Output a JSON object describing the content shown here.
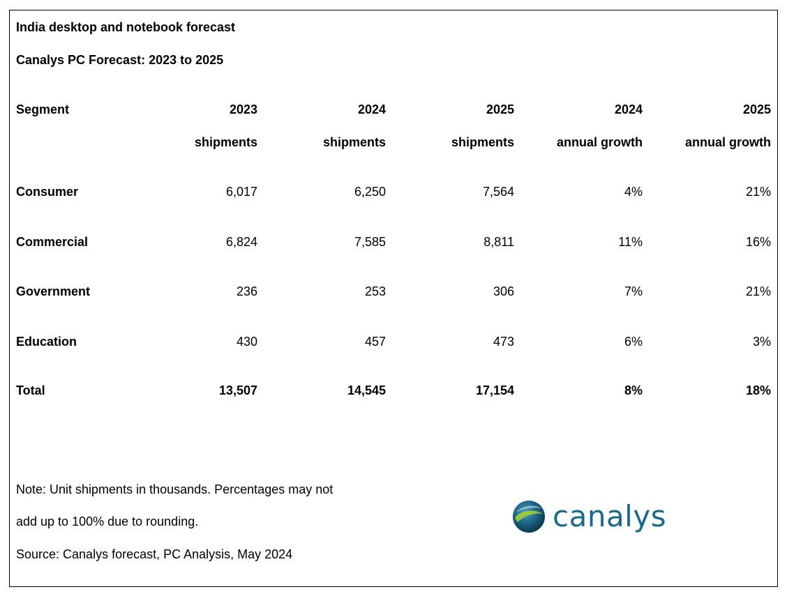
{
  "title": "India desktop and notebook forecast",
  "subtitle": "Canalys PC Forecast: 2023 to 2025",
  "table": {
    "headers_row1": [
      "Segment",
      "2023",
      "2024",
      "2025",
      "2024",
      "2025"
    ],
    "headers_row2": [
      "",
      "shipments",
      "shipments",
      "shipments",
      "annual growth",
      "annual growth"
    ],
    "rows": [
      {
        "segment": "Consumer",
        "s2023": "6,017",
        "s2024": "6,250",
        "s2025": "7,564",
        "g2024": "4%",
        "g2025": "21%"
      },
      {
        "segment": "Commercial",
        "s2023": "6,824",
        "s2024": "7,585",
        "s2025": "8,811",
        "g2024": "11%",
        "g2025": "16%"
      },
      {
        "segment": "Government",
        "s2023": "236",
        "s2024": "253",
        "s2025": "306",
        "g2024": "7%",
        "g2025": "21%"
      },
      {
        "segment": "Education",
        "s2023": "430",
        "s2024": "457",
        "s2025": "473",
        "g2024": "6%",
        "g2025": "3%"
      }
    ],
    "total": {
      "segment": "Total",
      "s2023": "13,507",
      "s2024": "14,545",
      "s2025": "17,154",
      "g2024": "8%",
      "g2025": "18%"
    }
  },
  "notes": {
    "line1": "Note: Unit shipments in thousands. Percentages may not",
    "line2": "add up to 100% due to rounding.",
    "source": "Source: Canalys forecast, PC Analysis, May 2024"
  },
  "logo": {
    "text": "canalys",
    "icon": "canalys-globe-icon",
    "color": "#1a6a8a"
  }
}
